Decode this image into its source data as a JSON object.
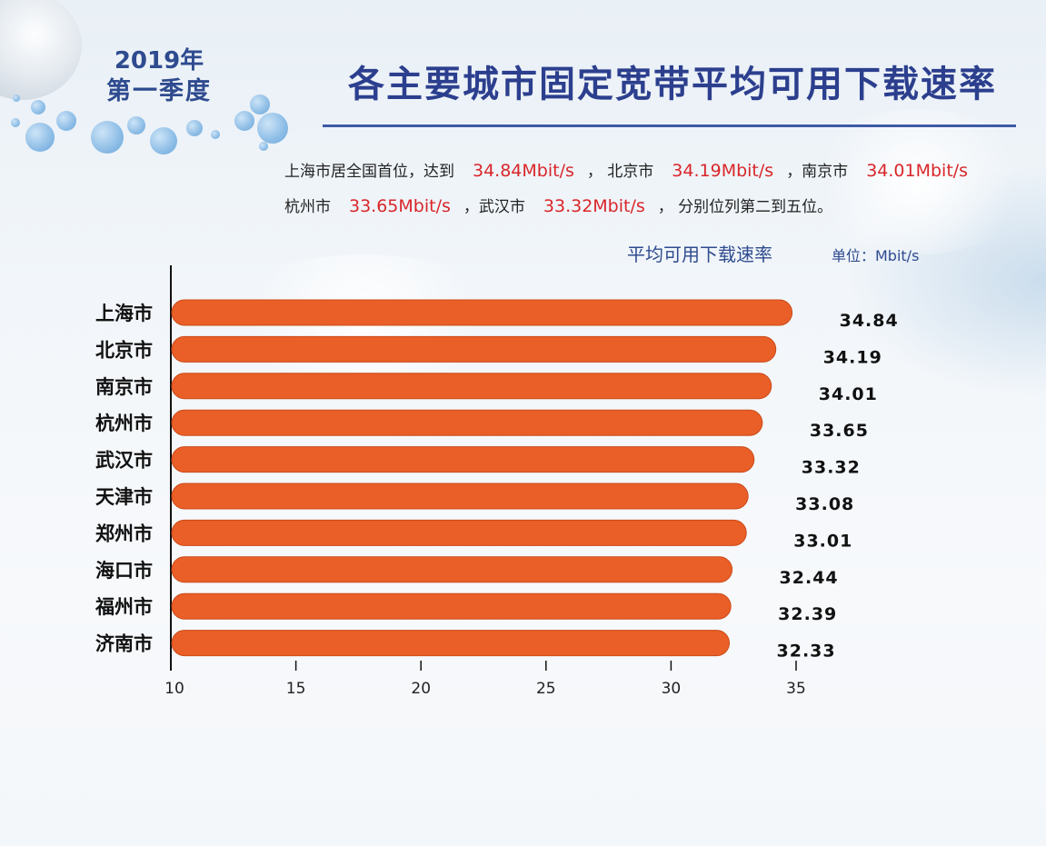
{
  "period": {
    "year": "2019年",
    "quarter": "第一季度"
  },
  "title": "各主要城市固定宽带平均可用下载速率",
  "summary": {
    "line1": [
      {
        "text": "上海市居全国首位，达到",
        "hl": false
      },
      {
        "text": "34.84Mbit/s",
        "hl": true
      },
      {
        "text": "， 北京市",
        "hl": false
      },
      {
        "text": "34.19Mbit/s",
        "hl": true
      },
      {
        "text": "，南京市",
        "hl": false
      },
      {
        "text": "34.01Mbit/s",
        "hl": true
      }
    ],
    "line2": [
      {
        "text": "杭州市",
        "hl": false
      },
      {
        "text": "33.65Mbit/s",
        "hl": true
      },
      {
        "text": "，武汉市",
        "hl": false
      },
      {
        "text": "33.32Mbit/s",
        "hl": true
      },
      {
        "text": "， 分别位列第二到五位。",
        "hl": false
      }
    ]
  },
  "colors": {
    "bar": "#ea5f27",
    "bar_stroke": "#c94b1a",
    "title": "#2c3f8e",
    "highlight": "#d9262a"
  },
  "chart_data": {
    "type": "bar",
    "orientation": "horizontal",
    "title": "平均可用下载速率",
    "unit": "单位：Mbit/s",
    "categories": [
      "上海市",
      "北京市",
      "南京市",
      "杭州市",
      "武汉市",
      "天津市",
      "郑州市",
      "海口市",
      "福州市",
      "济南市"
    ],
    "values": [
      34.84,
      34.19,
      34.01,
      33.65,
      33.32,
      33.08,
      33.01,
      32.44,
      32.39,
      32.33
    ],
    "value_labels": [
      "34.84",
      "34.19",
      "34.01",
      "33.65",
      "33.32",
      "33.08",
      "33.01",
      "32.44",
      "32.39",
      "32.33"
    ],
    "xlim": [
      10,
      35
    ],
    "xticks": [
      "10",
      "15",
      "20",
      "25",
      "30",
      "35"
    ],
    "grid": false
  }
}
